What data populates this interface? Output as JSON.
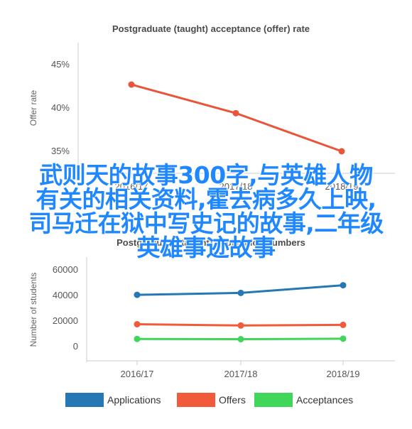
{
  "overlay_text": [
    "武则天的故事300字,与英雄人物",
    "有关的相关资料,霍去病多久上映,",
    "司马迁在狱中写史记的故事,二年级",
    "英雄事迹故事"
  ],
  "chart_data": [
    {
      "type": "line",
      "title": "Postgraduate (taught) acceptance (offer) rate",
      "ylabel": "Offer rate",
      "xlabel": "",
      "categories": [
        "2016/17",
        "2017/18",
        "2018/19"
      ],
      "series": [
        {
          "values": [
            42.7,
            39.4,
            35.0
          ],
          "color": "#e8553a"
        }
      ],
      "y_ticks": [
        "35%",
        "40%",
        "45%"
      ],
      "y_tick_values": [
        35,
        40,
        45
      ],
      "ylim": [
        34,
        47
      ],
      "grid": false
    },
    {
      "type": "line",
      "title": "Postgraduate (taught) application numbers",
      "ylabel": "Number of students",
      "xlabel": "",
      "categories": [
        "2016/17",
        "2017/18",
        "2018/19"
      ],
      "series": [
        {
          "name": "Applications",
          "values": [
            40500,
            42000,
            48000
          ],
          "color": "#2678b4"
        },
        {
          "name": "Offers",
          "values": [
            17500,
            16500,
            17000
          ],
          "color": "#f15a3b"
        },
        {
          "name": "Acceptances",
          "values": [
            6000,
            5800,
            6200
          ],
          "color": "#40d65a"
        }
      ],
      "y_ticks": [
        "0",
        "20000",
        "40000",
        "60000"
      ],
      "y_tick_values": [
        0,
        20000,
        40000,
        60000
      ],
      "ylim": [
        -10000,
        70000
      ],
      "grid": false,
      "legend_position": "bottom"
    }
  ]
}
